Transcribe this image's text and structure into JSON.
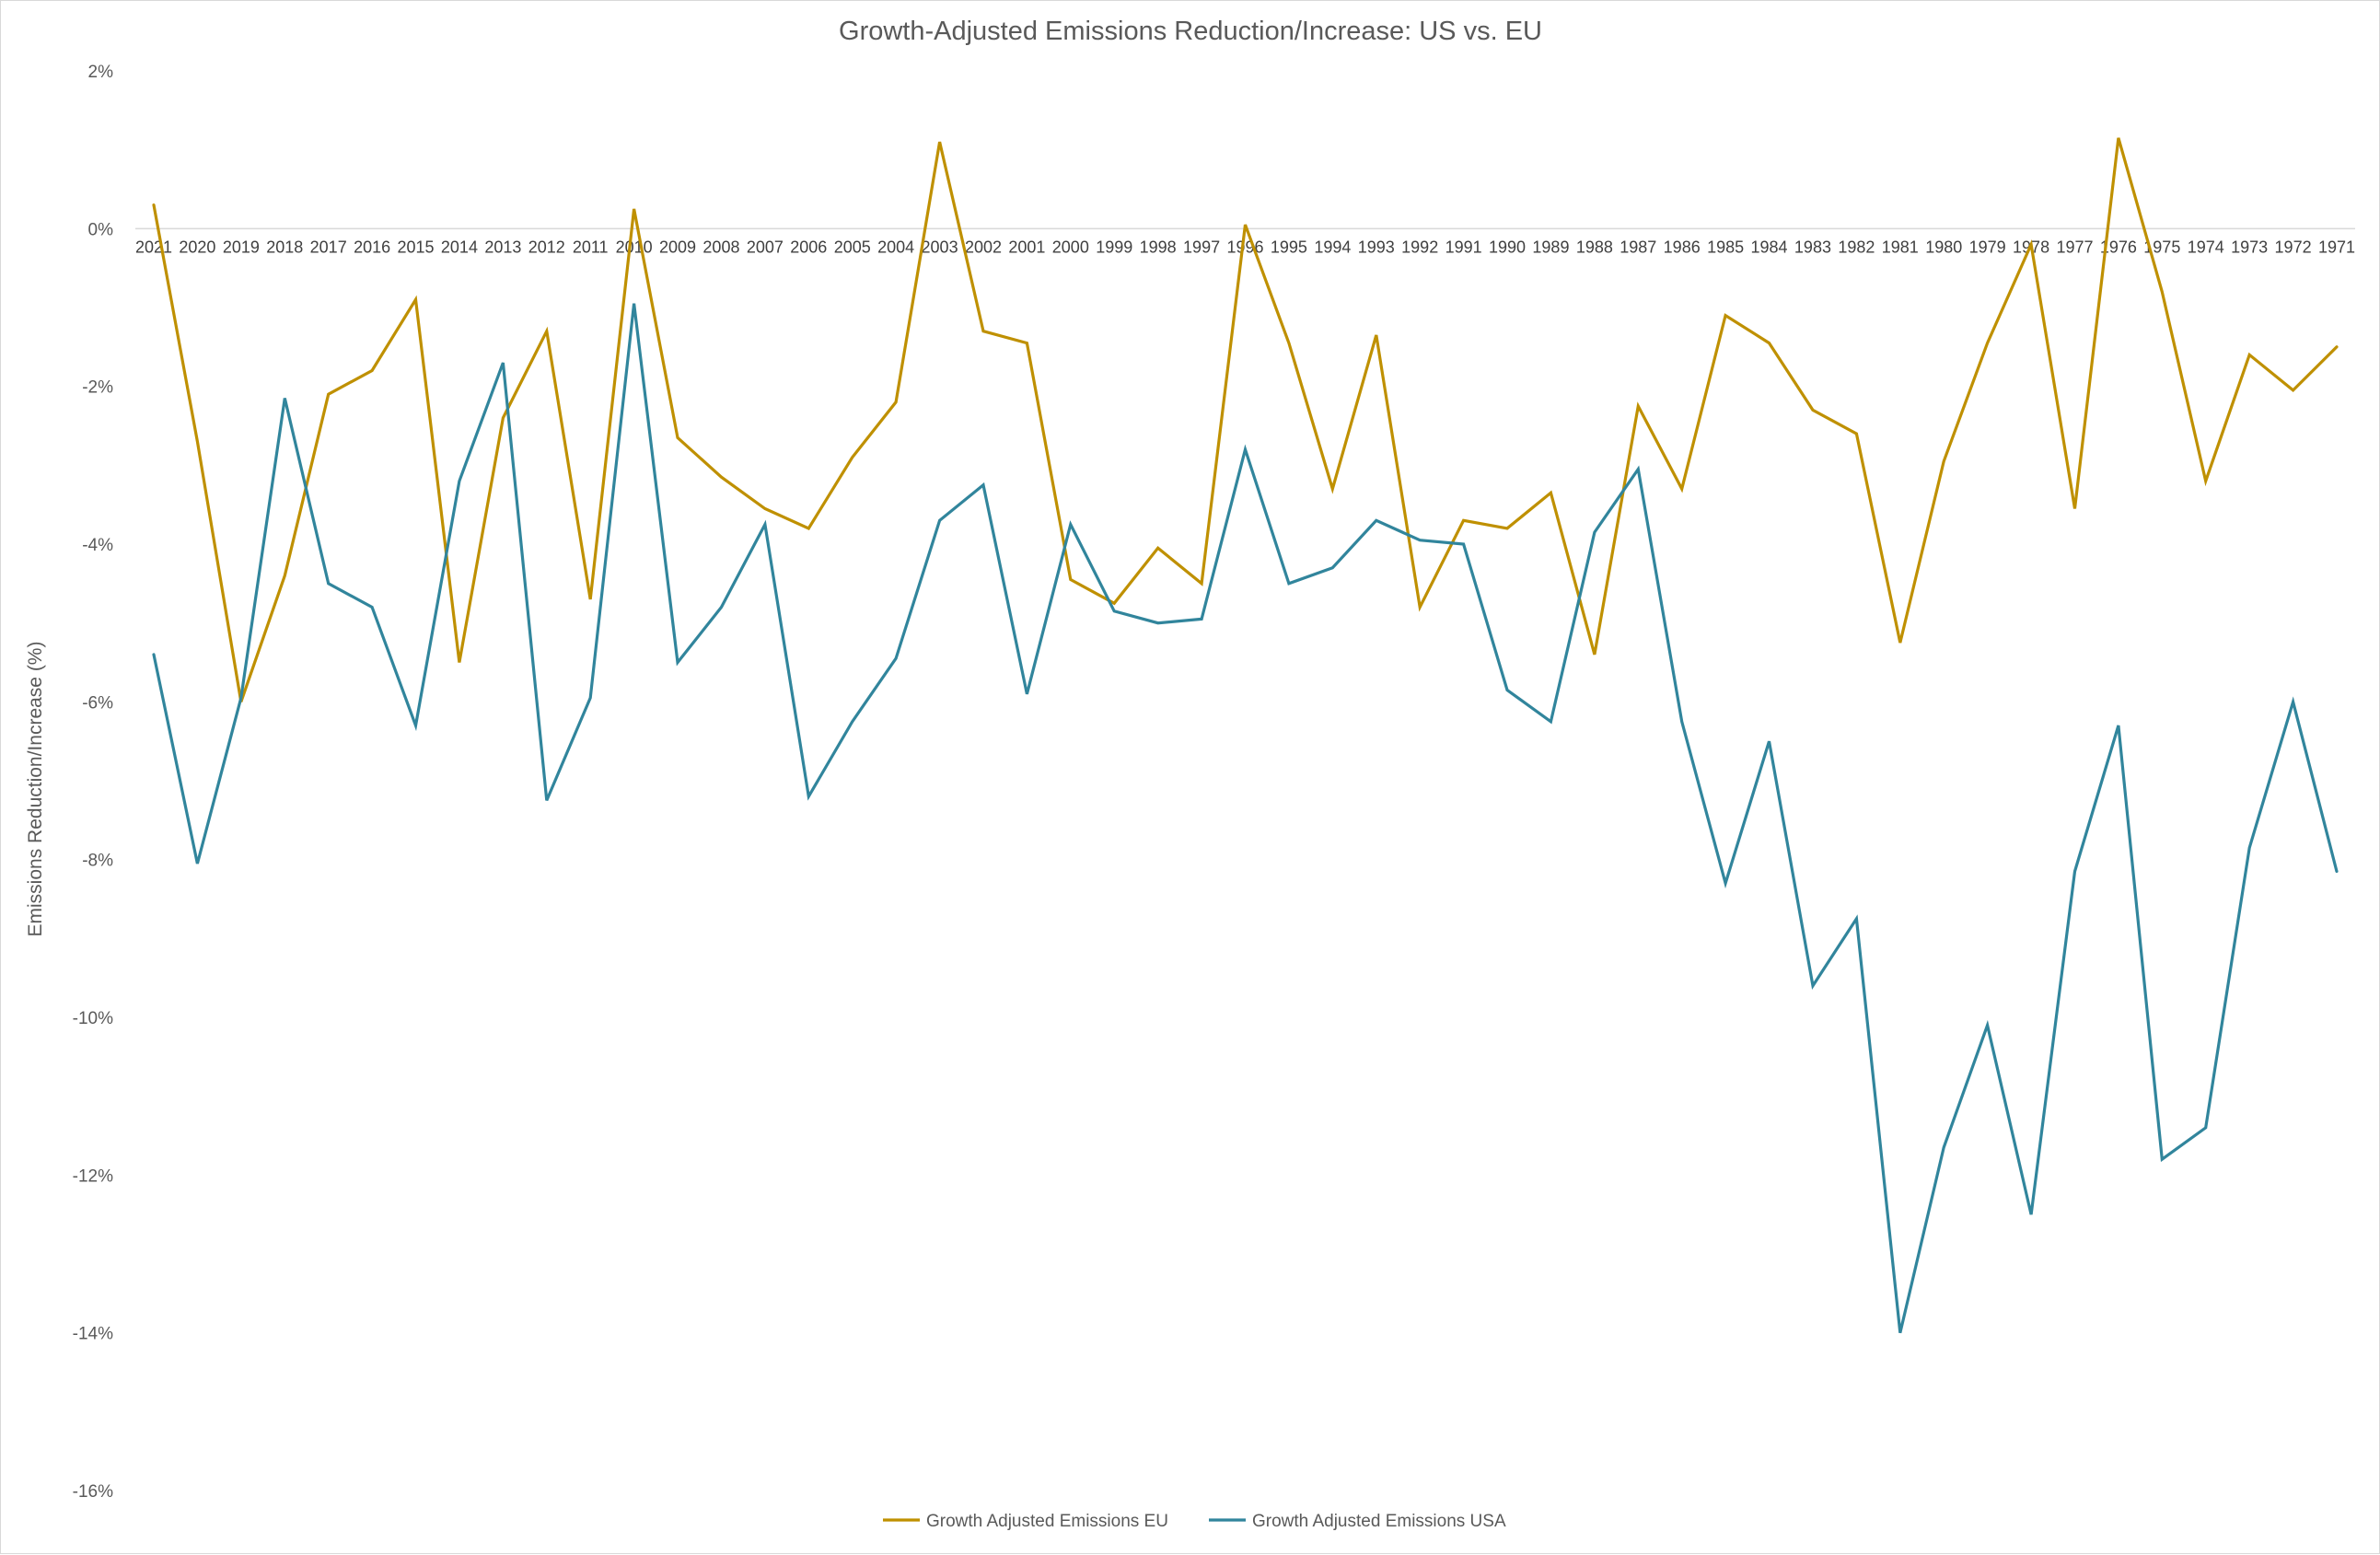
{
  "chart_data": {
    "type": "line",
    "title": "Growth-Adjusted Emissions Reduction/Increase: US vs. EU",
    "xlabel": "",
    "ylabel": "Emissions Reduction/Increase (%)",
    "ylim": [
      -16,
      2
    ],
    "yticks": [
      "2%",
      "0%",
      "-2%",
      "-4%",
      "-6%",
      "-8%",
      "-10%",
      "-12%",
      "-14%",
      "-16%"
    ],
    "ytick_values": [
      2,
      0,
      -2,
      -4,
      -6,
      -8,
      -10,
      -12,
      -14,
      -16
    ],
    "grid": false,
    "legend_position": "bottom",
    "categories": [
      "2021",
      "2020",
      "2019",
      "2018",
      "2017",
      "2016",
      "2015",
      "2014",
      "2013",
      "2012",
      "2011",
      "2010",
      "2009",
      "2008",
      "2007",
      "2006",
      "2005",
      "2004",
      "2003",
      "2002",
      "2001",
      "2000",
      "1999",
      "1998",
      "1997",
      "1996",
      "1995",
      "1994",
      "1993",
      "1992",
      "1991",
      "1990",
      "1989",
      "1988",
      "1987",
      "1986",
      "1985",
      "1984",
      "1983",
      "1982",
      "1981",
      "1980",
      "1979",
      "1978",
      "1977",
      "1976",
      "1975",
      "1974",
      "1973",
      "1972",
      "1971"
    ],
    "series": [
      {
        "name": "Growth Adjusted Emissions EU",
        "color": "#bf9000",
        "values": [
          0.3,
          -2.7,
          -6.0,
          -4.4,
          -2.1,
          -1.8,
          -0.9,
          -5.5,
          -2.4,
          -1.3,
          -4.7,
          0.25,
          -2.65,
          -3.15,
          -3.55,
          -3.8,
          -2.9,
          -2.2,
          1.1,
          -1.3,
          -1.45,
          -4.45,
          -4.75,
          -4.05,
          -4.5,
          0.05,
          -1.45,
          -3.3,
          -1.35,
          -4.8,
          -3.7,
          -3.8,
          -3.35,
          -5.4,
          -2.25,
          -3.3,
          -1.1,
          -1.45,
          -2.3,
          -2.6,
          -5.25,
          -2.95,
          -1.45,
          -0.2,
          -3.55,
          1.15,
          -0.8,
          -3.2,
          -1.6,
          -2.05,
          -1.5
        ]
      },
      {
        "name": "Growth Adjusted Emissions USA",
        "color": "#31859c",
        "values": [
          -5.4,
          -8.05,
          -5.95,
          -2.15,
          -4.5,
          -4.8,
          -6.3,
          -3.2,
          -1.7,
          -7.25,
          -5.95,
          -0.95,
          -5.5,
          -4.8,
          -3.75,
          -7.2,
          -6.25,
          -5.45,
          -3.7,
          -3.25,
          -5.9,
          -3.75,
          -4.85,
          -5.0,
          -4.95,
          -2.8,
          -4.5,
          -4.3,
          -3.7,
          -3.95,
          -4.0,
          -5.85,
          -6.25,
          -3.85,
          -3.05,
          -6.25,
          -8.3,
          -6.5,
          -9.6,
          -8.75,
          -14.0,
          -11.65,
          -10.1,
          -12.5,
          -8.15,
          -6.3,
          -11.8,
          -11.4,
          -7.85,
          -6.0,
          -8.15
        ]
      }
    ]
  }
}
